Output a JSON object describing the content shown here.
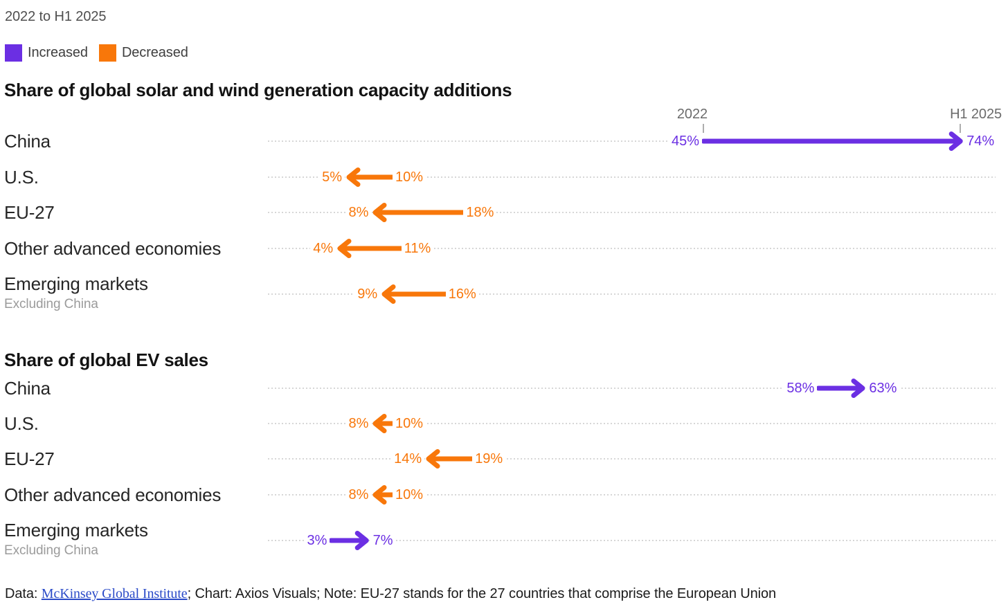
{
  "eyebrow": "2022 to H1 2025",
  "legend": {
    "increased": "Increased",
    "decreased": "Decreased"
  },
  "colors": {
    "increase": "#6b2fe3",
    "decrease": "#f8770a",
    "axis_text": "#6b6b6b",
    "tick": "#adadad",
    "leader_dots": "#d6d6d6",
    "row_label": "#262626",
    "sublabel": "#9b9b9b",
    "title": "#131313",
    "link": "#2b4bc8"
  },
  "footer": {
    "prefix": "Data: ",
    "link": "McKinsey Global Institute",
    "suffix": "; Chart: Axios Visuals; Note: EU-27 stands for the 27 countries that comprise the European Union"
  },
  "chart_data": [
    {
      "type": "arrow-dumbbell",
      "title": "Share of global solar and wind generation capacity additions",
      "unit": "%",
      "periods": [
        "2022",
        "H1 2025"
      ],
      "legend_position": "top-left",
      "grid": "dotted-leader-lines",
      "rows": [
        {
          "label": "China",
          "sublabel": "",
          "from": 45,
          "to": 74,
          "direction": "increased"
        },
        {
          "label": "U.S.",
          "sublabel": "",
          "from": 10,
          "to": 5,
          "direction": "decreased"
        },
        {
          "label": "EU-27",
          "sublabel": "",
          "from": 18,
          "to": 8,
          "direction": "decreased"
        },
        {
          "label": "Other advanced economies",
          "sublabel": "",
          "from": 11,
          "to": 4,
          "direction": "decreased"
        },
        {
          "label": "Emerging markets",
          "sublabel": "Excluding China",
          "from": 16,
          "to": 9,
          "direction": "decreased"
        }
      ]
    },
    {
      "type": "arrow-dumbbell",
      "title": "Share of global EV sales",
      "unit": "%",
      "periods": [
        "2022",
        "H1 2025"
      ],
      "grid": "dotted-leader-lines",
      "rows": [
        {
          "label": "China",
          "sublabel": "",
          "from": 58,
          "to": 63,
          "direction": "increased"
        },
        {
          "label": "U.S.",
          "sublabel": "",
          "from": 10,
          "to": 8,
          "direction": "decreased"
        },
        {
          "label": "EU-27",
          "sublabel": "",
          "from": 19,
          "to": 14,
          "direction": "decreased"
        },
        {
          "label": "Other advanced economies",
          "sublabel": "",
          "from": 10,
          "to": 8,
          "direction": "decreased"
        },
        {
          "label": "Emerging markets",
          "sublabel": "Excluding China",
          "from": 3,
          "to": 7,
          "direction": "increased"
        }
      ]
    }
  ]
}
